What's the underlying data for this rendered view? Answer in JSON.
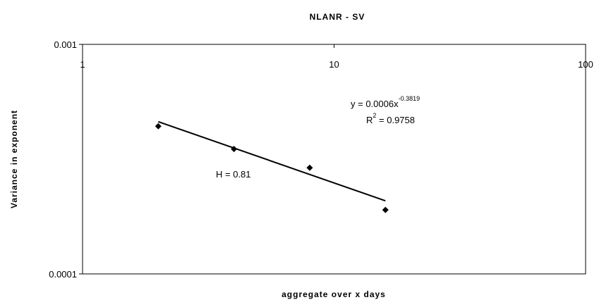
{
  "chart_data": {
    "type": "scatter",
    "title": "NLANR - SV",
    "x_label": "aggregate over x days",
    "y_label": "Variance in exponent",
    "log_x": true,
    "log_y": true,
    "xlim": [
      1,
      100
    ],
    "ylim": [
      0.0001,
      0.001
    ],
    "xticks": [
      1,
      10,
      100
    ],
    "yticks": [
      0.0001,
      0.001
    ],
    "grid": false,
    "color": "#000000",
    "series": [
      {
        "name": "NLANR - SV",
        "color": "#000000",
        "x": [
          2,
          4,
          8,
          16
        ],
        "values": [
          0.00044,
          0.00035,
          0.00029,
          0.00019
        ]
      }
    ],
    "trendline": {
      "coefficient": 0.0006,
      "exponent": -0.3819,
      "label": "y = 0.0006x",
      "r_squared_label": "R",
      "r_squared_sup": "2",
      "r_squared_value_label": " = 0.9758"
    },
    "annotation": "H = 0.81"
  }
}
